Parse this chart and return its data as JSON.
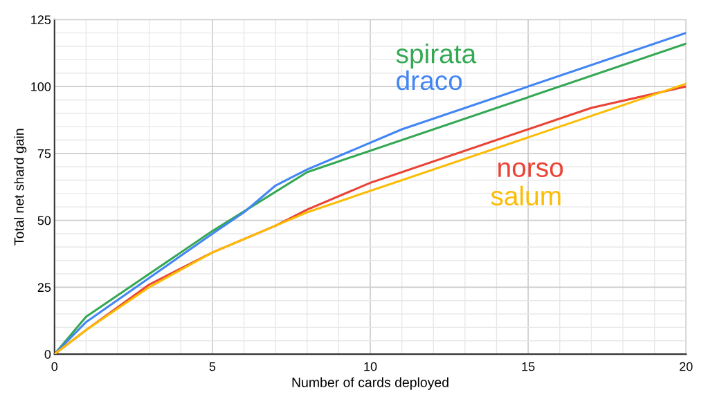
{
  "chart_data": {
    "type": "line",
    "xlabel": "Number of cards deployed",
    "ylabel": "Total net shard gain",
    "xlim": [
      0,
      20
    ],
    "xticks": [
      0,
      5,
      10,
      15,
      20
    ],
    "ylim": [
      0,
      125
    ],
    "yticks": [
      0,
      25,
      50,
      75,
      100,
      125
    ],
    "grid": true,
    "legend": false,
    "marker": "none",
    "line_style": "solid",
    "series": [
      {
        "name": "spirata",
        "color": "#34a853",
        "x": [
          0,
          1,
          5,
          8,
          20
        ],
        "values": [
          0,
          14,
          46,
          68,
          116
        ]
      },
      {
        "name": "draco",
        "color": "#4285f4",
        "x": [
          0,
          1,
          5,
          6,
          7,
          8,
          11,
          20
        ],
        "values": [
          0,
          12,
          45,
          53,
          63,
          69,
          84,
          120
        ]
      },
      {
        "name": "norso",
        "color": "#ea4335",
        "x": [
          0,
          1,
          3,
          5,
          7,
          8,
          10,
          17,
          20
        ],
        "values": [
          0,
          9,
          26,
          38,
          48,
          54,
          64,
          92,
          100
        ]
      },
      {
        "name": "salum",
        "color": "#fbbc04",
        "x": [
          0,
          1,
          3,
          5,
          7,
          8,
          20
        ],
        "values": [
          0,
          9,
          25,
          38,
          48,
          53,
          101
        ]
      }
    ]
  }
}
